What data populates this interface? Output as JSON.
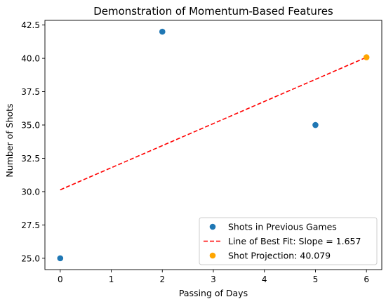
{
  "chart_data": {
    "type": "scatter",
    "title": "Demonstration of Momentum-Based Features",
    "xlabel": "Passing of Days",
    "ylabel": "Number of Shots",
    "xlim": [
      -0.3,
      6.3
    ],
    "ylim": [
      24.15,
      42.85
    ],
    "xticks": [
      0,
      1,
      2,
      3,
      4,
      5,
      6
    ],
    "xtick_labels": [
      "0",
      "1",
      "2",
      "3",
      "4",
      "5",
      "6"
    ],
    "yticks": [
      25.0,
      27.5,
      30.0,
      32.5,
      35.0,
      37.5,
      40.0,
      42.5
    ],
    "ytick_labels": [
      "25.0",
      "27.5",
      "30.0",
      "32.5",
      "35.0",
      "37.5",
      "40.0",
      "42.5"
    ],
    "grid": false,
    "legend_position": "lower-right",
    "series": [
      {
        "name": "Shots in Previous Games",
        "kind": "scatter",
        "color": "#1f77b4",
        "points": [
          [
            0,
            25
          ],
          [
            2,
            42
          ],
          [
            5,
            35
          ]
        ]
      },
      {
        "name": "Line of Best Fit: Slope = 1.657",
        "kind": "line",
        "style": "dashed",
        "color": "#ff0000",
        "points": [
          [
            0,
            30.136
          ],
          [
            6,
            40.079
          ]
        ]
      },
      {
        "name": "Shot Projection: 40.079",
        "kind": "scatter",
        "color": "#ffa500",
        "points": [
          [
            6,
            40.079
          ]
        ]
      }
    ]
  }
}
